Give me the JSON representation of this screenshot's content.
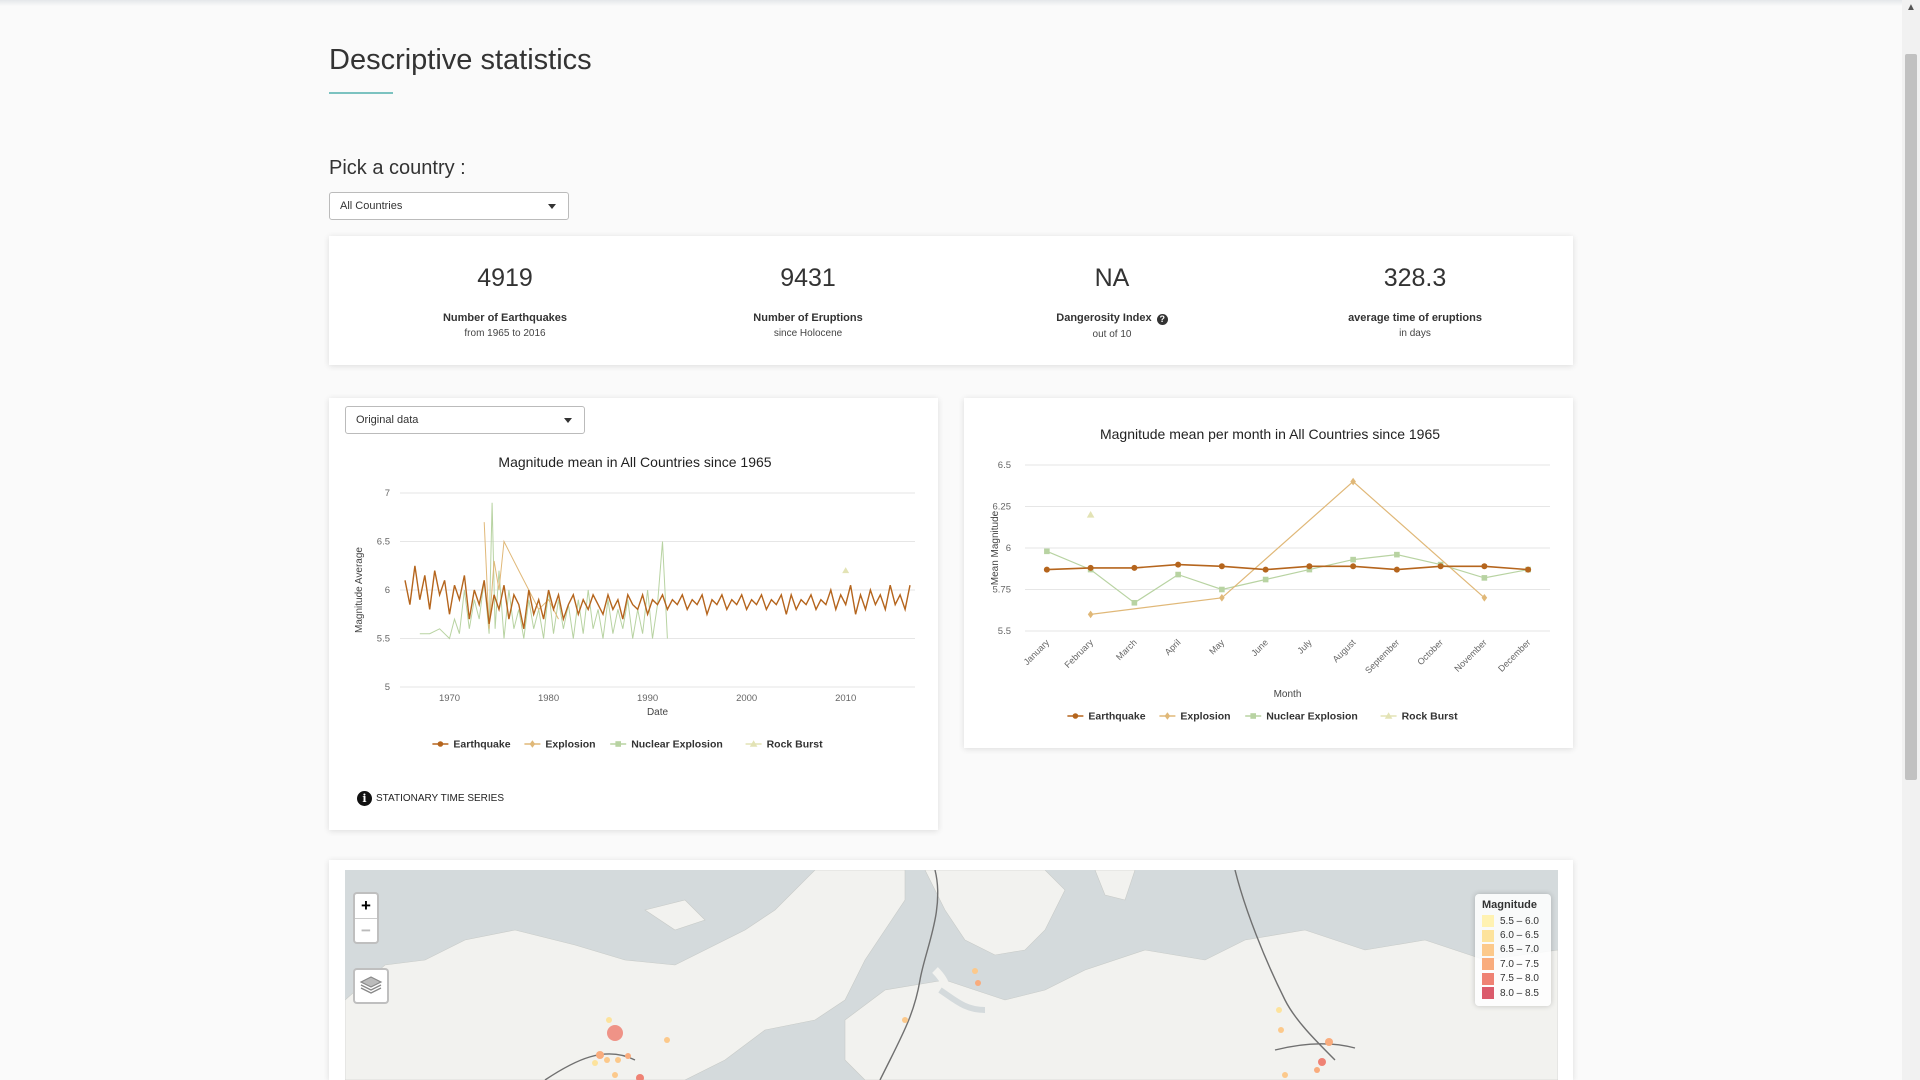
{
  "page": {
    "title": "Descriptive statistics",
    "pick_label": "Pick a country :"
  },
  "country_select": {
    "value": "All Countries"
  },
  "stats": [
    {
      "value": "4919",
      "label": "Number of Earthquakes",
      "sub": "from 1965 to 2016"
    },
    {
      "value": "9431",
      "label": "Number of Eruptions",
      "sub": "since Holocene"
    },
    {
      "value": "NA",
      "label": "Dangerosity Index",
      "sub": "out of 10",
      "help_icon": "question-circle-icon"
    },
    {
      "value": "328.3",
      "label": "average time of eruptions",
      "sub": "in days"
    }
  ],
  "data_select": {
    "value": "Original data"
  },
  "info": {
    "text": "STATIONARY TIME SERIES",
    "icon": "info-circle-icon"
  },
  "colors": {
    "Earthquake": "#b5651d",
    "Explosion": "#e0b878",
    "Nuclear Explosion": "#b8d3a2",
    "Rock Burst": "#e3e3b5"
  },
  "chart_data": [
    {
      "type": "line",
      "title": "Magnitude mean in All Countries since 1965",
      "xlabel": "Date",
      "ylabel": "Magnitude Average",
      "xlim": [
        1965,
        2017
      ],
      "ylim": [
        5,
        7
      ],
      "yticks": [
        5,
        5.5,
        6,
        6.5,
        7
      ],
      "ytick_labels": [
        "5",
        "5.5",
        "6",
        "6.5",
        "7"
      ],
      "xticks": [
        1970,
        1980,
        1990,
        2000,
        2010
      ],
      "xtick_labels": [
        "1970",
        "1980",
        "1990",
        "2000",
        "2010"
      ],
      "grid": true,
      "legend_position": "bottom",
      "series": [
        {
          "name": "Earthquake",
          "note": "dense monthly series fluctuating between about 5.6 and 6.3, mean about 5.9",
          "x": [
            1965.5,
            1966,
            1966.5,
            1967,
            1967.5,
            1968,
            1968.5,
            1969,
            1969.5,
            1970,
            1970.5,
            1971,
            1971.5,
            1972,
            1972.5,
            1973,
            1973.5,
            1974,
            1974.5,
            1975,
            1975.5,
            1976,
            1976.5,
            1977,
            1977.5,
            1978,
            1978.5,
            1979,
            1979.5,
            1980,
            1980.5,
            1981,
            1981.5,
            1982,
            1982.5,
            1983,
            1983.5,
            1984,
            1984.5,
            1985,
            1985.5,
            1986,
            1986.5,
            1987,
            1987.5,
            1988,
            1988.5,
            1989,
            1989.5,
            1990,
            1990.5,
            1991,
            1991.5,
            1992,
            1992.5,
            1993,
            1993.5,
            1994,
            1994.5,
            1995,
            1995.5,
            1996,
            1996.5,
            1997,
            1997.5,
            1998,
            1998.5,
            1999,
            1999.5,
            2000,
            2000.5,
            2001,
            2001.5,
            2002,
            2002.5,
            2003,
            2003.5,
            2004,
            2004.5,
            2005,
            2005.5,
            2006,
            2006.5,
            2007,
            2007.5,
            2008,
            2008.5,
            2009,
            2009.5,
            2010,
            2010.5,
            2011,
            2011.5,
            2012,
            2012.5,
            2013,
            2013.5,
            2014,
            2014.5,
            2015,
            2015.5,
            2016,
            2016.5
          ],
          "y": [
            6.1,
            5.85,
            6.25,
            5.9,
            6.15,
            5.8,
            6.2,
            5.95,
            6.1,
            5.75,
            6.05,
            5.9,
            6.15,
            5.7,
            6.0,
            5.85,
            6.1,
            5.65,
            5.95,
            5.8,
            6.05,
            5.7,
            5.95,
            5.85,
            5.6,
            6.0,
            5.75,
            5.9,
            5.7,
            6.0,
            5.8,
            5.95,
            5.7,
            5.85,
            5.95,
            5.75,
            5.9,
            5.8,
            5.95,
            5.85,
            5.75,
            5.95,
            5.8,
            5.9,
            5.7,
            5.95,
            5.85,
            5.8,
            5.95,
            5.75,
            5.9,
            5.85,
            5.95,
            5.8,
            5.9,
            5.85,
            5.95,
            5.8,
            5.9,
            5.85,
            5.95,
            5.75,
            5.9,
            5.85,
            5.95,
            5.8,
            5.9,
            5.85,
            5.95,
            5.8,
            5.9,
            5.85,
            5.95,
            5.8,
            5.9,
            5.85,
            5.95,
            5.75,
            5.95,
            5.8,
            5.9,
            5.85,
            5.95,
            5.8,
            5.9,
            5.85,
            6.0,
            5.8,
            5.95,
            5.85,
            6.05,
            5.75,
            5.95,
            5.8,
            6.0,
            5.85,
            5.95,
            5.8,
            6.05,
            5.85,
            5.95,
            5.8,
            6.05
          ]
        },
        {
          "name": "Explosion",
          "x": [
            1973.5,
            1974,
            1974.5,
            1975,
            1975.5,
            1976,
            1977,
            1978,
            1979,
            1980,
            1981
          ],
          "y": [
            6.7,
            5.6,
            6.3,
            6.0,
            6.5,
            6.4,
            6.2,
            6.0,
            5.8,
            5.9,
            5.7
          ]
        },
        {
          "name": "Nuclear Explosion",
          "note": "spiky series between about 5.5 and 6.9, 1965-1994",
          "x": [
            1967,
            1968,
            1969,
            1970,
            1970.5,
            1971,
            1971.5,
            1972,
            1972.5,
            1973,
            1973.5,
            1974,
            1974.3,
            1974.6,
            1975,
            1975.5,
            1976,
            1976.5,
            1977,
            1977.5,
            1978,
            1978.5,
            1979,
            1979.5,
            1980,
            1980.5,
            1981,
            1981.5,
            1982,
            1982.5,
            1983,
            1983.5,
            1984,
            1984.5,
            1985,
            1985.5,
            1986,
            1986.5,
            1987,
            1987.5,
            1988,
            1988.5,
            1989,
            1989.5,
            1990,
            1990.5,
            1991,
            1991.5,
            1992
          ],
          "y": [
            5.55,
            5.55,
            5.6,
            5.5,
            5.7,
            5.55,
            6.0,
            5.6,
            5.9,
            5.7,
            6.1,
            5.55,
            6.9,
            5.6,
            6.2,
            5.5,
            6.0,
            5.6,
            5.8,
            5.5,
            5.9,
            5.6,
            5.8,
            5.5,
            6.0,
            5.55,
            5.9,
            5.6,
            5.85,
            5.5,
            5.9,
            5.55,
            6.0,
            5.6,
            5.8,
            5.5,
            5.9,
            5.55,
            5.8,
            5.6,
            5.9,
            5.5,
            5.8,
            5.55,
            6.0,
            5.5,
            5.85,
            6.5,
            5.5
          ]
        },
        {
          "name": "Rock Burst",
          "x": [
            2010
          ],
          "y": [
            6.2
          ]
        }
      ]
    },
    {
      "type": "line",
      "title": "Magnitude mean per month in All Countries since 1965",
      "xlabel": "Month",
      "ylabel": "Mean Magnitude",
      "ylim": [
        5.5,
        6.5
      ],
      "yticks": [
        5.5,
        5.75,
        6,
        6.25,
        6.5
      ],
      "ytick_labels": [
        "5.5",
        "5.75",
        "6",
        "6.25",
        "6.5"
      ],
      "categories": [
        "January",
        "February",
        "March",
        "April",
        "May",
        "June",
        "July",
        "August",
        "September",
        "October",
        "November",
        "December"
      ],
      "grid": true,
      "legend_position": "bottom",
      "series": [
        {
          "name": "Earthquake",
          "values": [
            5.87,
            5.88,
            5.88,
            5.9,
            5.89,
            5.87,
            5.89,
            5.89,
            5.87,
            5.89,
            5.89,
            5.87
          ]
        },
        {
          "name": "Explosion",
          "values": [
            null,
            5.6,
            null,
            null,
            5.7,
            null,
            null,
            6.4,
            null,
            null,
            5.7,
            null
          ]
        },
        {
          "name": "Nuclear Explosion",
          "values": [
            5.98,
            5.87,
            5.67,
            5.84,
            5.75,
            5.81,
            5.87,
            5.93,
            5.96,
            5.9,
            5.82,
            5.87
          ]
        },
        {
          "name": "Rock Burst",
          "values": [
            null,
            6.2,
            null,
            null,
            null,
            null,
            null,
            null,
            null,
            null,
            null,
            null
          ]
        }
      ]
    }
  ],
  "map": {
    "zoom_in": "+",
    "zoom_out": "−",
    "layers_icon": "layers-icon",
    "legend": {
      "title": "Magnitude",
      "items": [
        {
          "label": "5.5 – 6.0",
          "color": "#fff2b2"
        },
        {
          "label": "6.0 – 6.5",
          "color": "#fde39c"
        },
        {
          "label": "6.5 – 7.0",
          "color": "#fcc98b"
        },
        {
          "label": "7.0 – 7.5",
          "color": "#f9ac7d"
        },
        {
          "label": "7.5 – 8.0",
          "color": "#ef8274"
        },
        {
          "label": "8.0 – 8.5",
          "color": "#db5b6c"
        }
      ]
    }
  }
}
